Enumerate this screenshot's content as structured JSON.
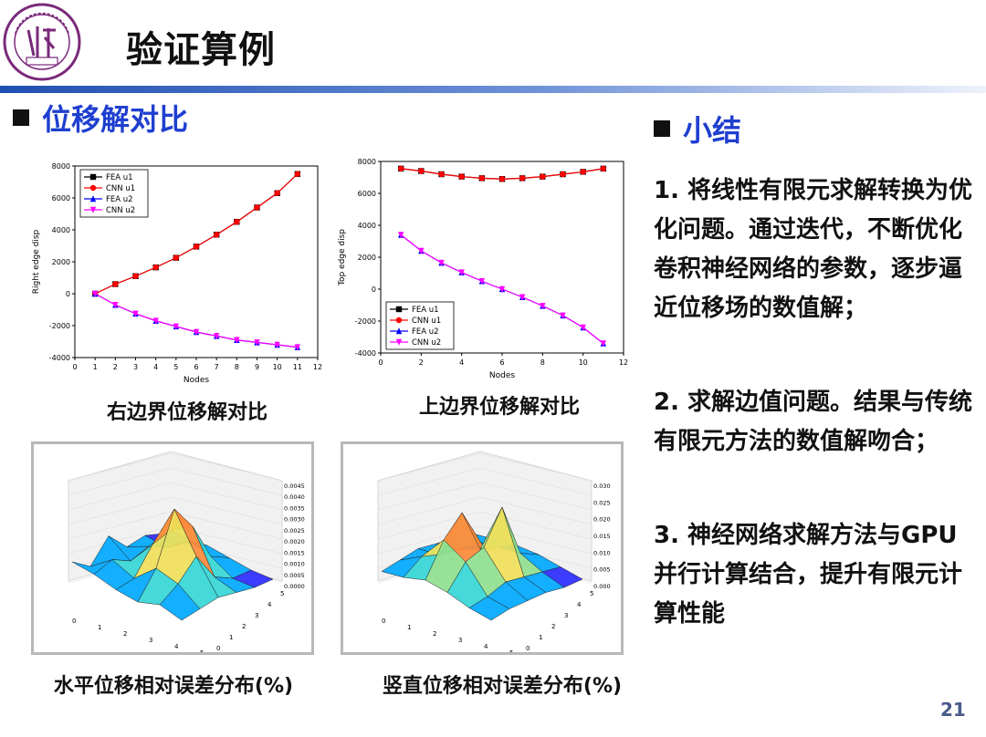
{
  "page": {
    "title": "验证算例",
    "page_number": "21",
    "left_heading": "位移解对比",
    "right_heading": "小结",
    "captions": {
      "right_edge": "右边界位移解对比",
      "top_edge": "上边界位移解对比",
      "horizontal_error": "水平位移相对误差分布(%)",
      "vertical_error": "竖直位移相对误差分布(%)"
    },
    "summary": [
      "1. 将线性有限元求解转换为优化问题。通过迭代，不断优化卷积神经网络的参数，逐步逼近位移场的数值解；",
      "2. 求解边值问题。结果与传统有限元方法的数值解吻合；",
      "3. 神经网络求解方法与GPU并行计算结合，提升有限元计算性能"
    ]
  },
  "chart_data": [
    {
      "type": "line",
      "xlabel": "Nodes",
      "ylabel": "Right edge disp",
      "xlim": [
        0,
        12
      ],
      "ylim": [
        -4000,
        8000
      ],
      "xticks": [
        0,
        1,
        2,
        3,
        4,
        5,
        6,
        7,
        8,
        9,
        10,
        11,
        12
      ],
      "yticks": [
        -4000,
        -2000,
        0,
        2000,
        4000,
        6000,
        8000
      ],
      "legend": "top-left",
      "x": [
        1,
        2,
        3,
        4,
        5,
        6,
        7,
        8,
        9,
        10,
        11
      ],
      "series": [
        {
          "name": "FEA u1",
          "color": "#000000",
          "marker": "square",
          "values": [
            0,
            600,
            1100,
            1650,
            2250,
            2950,
            3700,
            4500,
            5400,
            6300,
            7500
          ]
        },
        {
          "name": "CNN u1",
          "color": "#ff0000",
          "marker": "circle",
          "values": [
            0,
            600,
            1100,
            1650,
            2250,
            2950,
            3700,
            4500,
            5400,
            6300,
            7500
          ]
        },
        {
          "name": "FEA u2",
          "color": "#0000ff",
          "marker": "triangle-up",
          "values": [
            0,
            -700,
            -1250,
            -1700,
            -2050,
            -2400,
            -2650,
            -2900,
            -3050,
            -3200,
            -3350
          ]
        },
        {
          "name": "CNN u2",
          "color": "#ff00ff",
          "marker": "triangle-down",
          "values": [
            0,
            -700,
            -1250,
            -1700,
            -2050,
            -2400,
            -2650,
            -2900,
            -3050,
            -3200,
            -3350
          ]
        }
      ]
    },
    {
      "type": "line",
      "xlabel": "Nodes",
      "ylabel": "Top edge disp",
      "xlim": [
        0,
        12
      ],
      "ylim": [
        -4000,
        8000
      ],
      "xticks": [
        0,
        2,
        4,
        6,
        8,
        10,
        12
      ],
      "yticks": [
        -4000,
        -2000,
        0,
        2000,
        4000,
        6000,
        8000
      ],
      "legend": "bottom-left",
      "x": [
        1,
        2,
        3,
        4,
        5,
        6,
        7,
        8,
        9,
        10,
        11
      ],
      "series": [
        {
          "name": "FEA u1",
          "color": "#000000",
          "marker": "square",
          "values": [
            7550,
            7400,
            7200,
            7050,
            6950,
            6900,
            6950,
            7050,
            7200,
            7350,
            7550
          ]
        },
        {
          "name": "CNN u1",
          "color": "#ff0000",
          "marker": "circle",
          "values": [
            7550,
            7400,
            7200,
            7050,
            6950,
            6900,
            6950,
            7050,
            7200,
            7350,
            7550
          ]
        },
        {
          "name": "FEA u2",
          "color": "#0000ff",
          "marker": "triangle-up",
          "values": [
            3400,
            2400,
            1650,
            1050,
            500,
            0,
            -500,
            -1050,
            -1650,
            -2400,
            -3400
          ]
        },
        {
          "name": "CNN u2",
          "color": "#ff00ff",
          "marker": "triangle-down",
          "values": [
            3400,
            2400,
            1650,
            1050,
            500,
            0,
            -500,
            -1050,
            -1650,
            -2400,
            -3400
          ]
        }
      ]
    },
    {
      "type": "surface3d",
      "zticks": [
        "0.0045",
        "0.0040",
        "0.0035",
        "0.0030",
        "0.0025",
        "0.0020",
        "0.0015",
        "0.0010",
        "0.0005",
        "0.0000"
      ],
      "xticks": [
        "0",
        "1",
        "2",
        "3",
        "4",
        "5"
      ],
      "yticks": [
        "0",
        "1",
        "2",
        "3",
        "4",
        "5"
      ]
    },
    {
      "type": "surface3d",
      "zticks": [
        "0.030",
        "0.025",
        "0.020",
        "0.015",
        "0.010",
        "0.005",
        "0.000"
      ],
      "xticks": [
        "0",
        "1",
        "2",
        "3",
        "4",
        "5"
      ],
      "yticks": [
        "0",
        "1",
        "2",
        "3",
        "4",
        "5"
      ]
    }
  ]
}
